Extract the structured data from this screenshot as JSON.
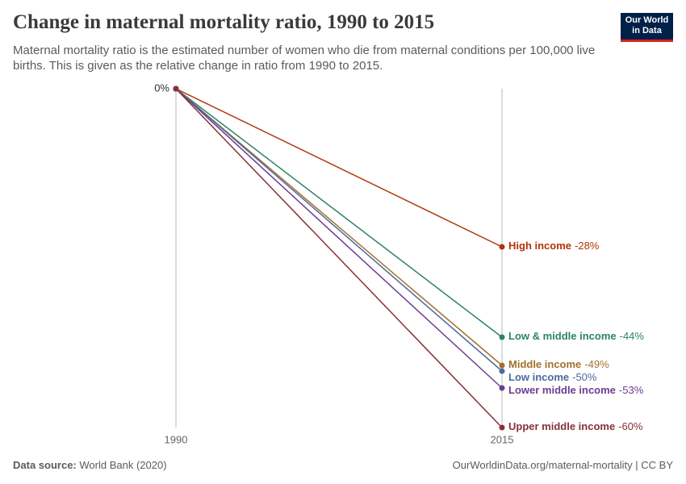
{
  "header": {
    "title": "Change in maternal mortality ratio, 1990 to 2015",
    "subtitle": "Maternal mortality ratio is the estimated number of women who die from maternal conditions per 100,000 live births. This is given as the relative change in ratio from 1990 to 2015.",
    "logo": [
      "Our World",
      "in Data"
    ]
  },
  "chart_data": {
    "type": "slope",
    "categories": [
      "1990",
      "2015"
    ],
    "ylim": [
      -60,
      0
    ],
    "yticks": [
      {
        "value": 0,
        "label": "0%"
      }
    ],
    "series": [
      {
        "name": "High income",
        "color": "#b13507",
        "values": [
          0,
          -28
        ],
        "value_labels": [
          null,
          "-28%"
        ]
      },
      {
        "name": "Low & middle income",
        "color": "#2c8465",
        "values": [
          0,
          -44
        ],
        "value_labels": [
          null,
          "-44%"
        ]
      },
      {
        "name": "Middle income",
        "color": "#a2702c",
        "values": [
          0,
          -49
        ],
        "value_labels": [
          null,
          "-49%"
        ]
      },
      {
        "name": "Low income",
        "color": "#4c6a9c",
        "values": [
          0,
          -50
        ],
        "value_labels": [
          null,
          "-50%"
        ]
      },
      {
        "name": "Lower middle income",
        "color": "#6d3e91",
        "values": [
          0,
          -53
        ],
        "value_labels": [
          null,
          "-53%"
        ]
      },
      {
        "name": "Upper middle income",
        "color": "#883039",
        "values": [
          0,
          -60
        ],
        "value_labels": [
          null,
          "-60%"
        ]
      }
    ]
  },
  "footer": {
    "source_label": "Data source:",
    "source": "World Bank (2020)",
    "url": "OurWorldinData.org/maternal-mortality | CC BY"
  }
}
